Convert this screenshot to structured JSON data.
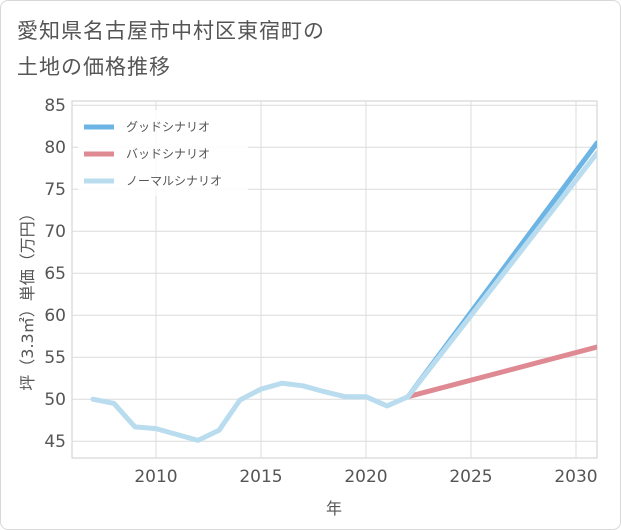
{
  "chart_data": {
    "type": "line",
    "title_lines": [
      "愛知県名古屋市中村区東宿町の",
      "土地の価格推移"
    ],
    "xlabel": "年",
    "ylabel": "坪（3.3㎡）単価（万円）",
    "xlim": [
      2006,
      2031
    ],
    "ylim": [
      43,
      85.5
    ],
    "x_ticks": [
      2010,
      2015,
      2020,
      2025,
      2030
    ],
    "y_ticks": [
      45,
      50,
      55,
      60,
      65,
      70,
      75,
      80,
      85
    ],
    "grid": true,
    "legend_position": "top-left",
    "series": [
      {
        "name": "グッドシナリオ",
        "color": "#6cb4e4",
        "points": [
          [
            2022,
            50.3
          ],
          [
            2031,
            80.5
          ]
        ]
      },
      {
        "name": "バッドシナリオ",
        "color": "#df8a92",
        "points": [
          [
            2022,
            50.3
          ],
          [
            2031,
            56.2
          ]
        ]
      },
      {
        "name": "ノーマルシナリオ",
        "color": "#b9dcee",
        "points": [
          [
            2007,
            50.0
          ],
          [
            2008,
            49.5
          ],
          [
            2009,
            46.7
          ],
          [
            2010,
            46.5
          ],
          [
            2011,
            45.8
          ],
          [
            2012,
            45.1
          ],
          [
            2013,
            46.3
          ],
          [
            2014,
            49.9
          ],
          [
            2015,
            51.2
          ],
          [
            2016,
            51.9
          ],
          [
            2017,
            51.6
          ],
          [
            2018,
            50.9
          ],
          [
            2019,
            50.3
          ],
          [
            2020,
            50.3
          ],
          [
            2021,
            49.2
          ],
          [
            2022,
            50.3
          ],
          [
            2031,
            79.3
          ]
        ]
      }
    ]
  }
}
